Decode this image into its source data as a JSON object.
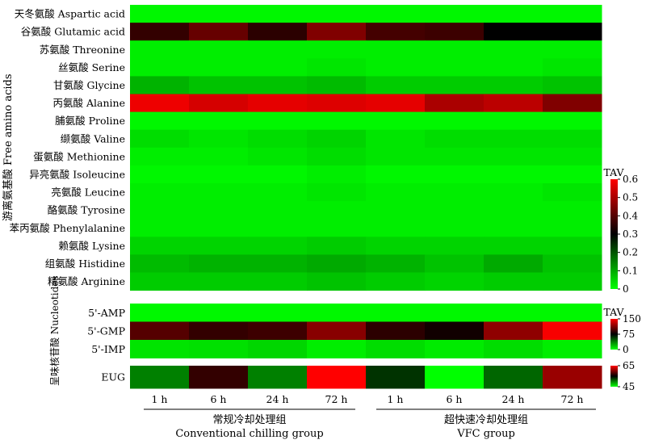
{
  "chart_data": [
    {
      "type": "heatmap",
      "panel": "free-amino-acids",
      "ylabel": "游离氨基酸 Free amino acids",
      "colorbar": {
        "title": "TAV",
        "range": [
          0,
          0.6
        ],
        "ticks": [
          "0",
          "0.1",
          "0.2",
          "0.3",
          "0.4",
          "0.5",
          "0.6"
        ]
      },
      "rows": [
        "天冬氨酸 Aspartic acid",
        "谷氨酸 Glutamic acid",
        "苏氨酸 Threonine",
        "丝氨酸 Serine",
        "甘氨酸 Glycine",
        "丙氨酸 Alanine",
        "脯氨酸 Proline",
        "缬氨酸 Valine",
        "蛋氨酸 Methionine",
        "异亮氨酸 Isoleucine",
        "亮氨酸 Leucine",
        "酪氨酸 Tyrosine",
        "苯丙氨酸 Phenylalanine",
        "赖氨酸 Lysine",
        "组氨酸 Histidine",
        "精氨酸 Arginine"
      ],
      "values": [
        [
          0.01,
          0.01,
          0.01,
          0.01,
          0.01,
          0.01,
          0.01,
          0.01
        ],
        [
          0.36,
          0.42,
          0.35,
          0.45,
          0.38,
          0.37,
          0.3,
          0.3
        ],
        [
          0.02,
          0.02,
          0.02,
          0.02,
          0.02,
          0.02,
          0.02,
          0.02
        ],
        [
          0.02,
          0.02,
          0.02,
          0.03,
          0.02,
          0.02,
          0.02,
          0.03
        ],
        [
          0.09,
          0.07,
          0.07,
          0.08,
          0.06,
          0.06,
          0.06,
          0.07
        ],
        [
          0.58,
          0.55,
          0.57,
          0.56,
          0.57,
          0.5,
          0.52,
          0.45
        ],
        [
          0.01,
          0.01,
          0.01,
          0.01,
          0.01,
          0.01,
          0.01,
          0.01
        ],
        [
          0.04,
          0.03,
          0.04,
          0.05,
          0.03,
          0.04,
          0.04,
          0.04
        ],
        [
          0.02,
          0.02,
          0.03,
          0.04,
          0.03,
          0.03,
          0.03,
          0.03
        ],
        [
          0.01,
          0.01,
          0.01,
          0.02,
          0.01,
          0.01,
          0.01,
          0.01
        ],
        [
          0.02,
          0.02,
          0.02,
          0.03,
          0.02,
          0.02,
          0.02,
          0.03
        ],
        [
          0.02,
          0.02,
          0.02,
          0.02,
          0.02,
          0.02,
          0.02,
          0.02
        ],
        [
          0.02,
          0.02,
          0.02,
          0.02,
          0.02,
          0.02,
          0.02,
          0.02
        ],
        [
          0.05,
          0.05,
          0.05,
          0.06,
          0.05,
          0.05,
          0.05,
          0.05
        ],
        [
          0.08,
          0.09,
          0.09,
          0.1,
          0.09,
          0.07,
          0.1,
          0.07
        ],
        [
          0.06,
          0.06,
          0.06,
          0.07,
          0.06,
          0.05,
          0.06,
          0.06
        ]
      ]
    },
    {
      "type": "heatmap",
      "panel": "nucleotides",
      "ylabel": "呈味核苷酸 Nucleotides",
      "colorbar": {
        "title": "TAV",
        "range": [
          0,
          150
        ],
        "ticks": [
          "0",
          "75",
          "150"
        ]
      },
      "rows": [
        "5'-AMP",
        "5'-GMP",
        "5'-IMP"
      ],
      "values": [
        [
          2,
          2,
          2,
          2,
          2,
          2,
          2,
          2
        ],
        [
          100,
          90,
          93,
          115,
          88,
          80,
          117,
          148
        ],
        [
          8,
          9,
          12,
          5,
          10,
          6,
          10,
          5
        ]
      ]
    },
    {
      "type": "heatmap",
      "panel": "eug",
      "colorbar": {
        "title": "",
        "range": [
          45,
          65
        ],
        "ticks": [
          "65",
          "45"
        ]
      },
      "rows": [
        "EUG"
      ],
      "values": [
        [
          50,
          57,
          50,
          65,
          53,
          45,
          51,
          61
        ]
      ]
    }
  ],
  "columns": [
    "1 h",
    "6 h",
    "24 h",
    "72 h",
    "1 h",
    "6 h",
    "24 h",
    "72 h"
  ],
  "groups": [
    {
      "cn": "常规冷却处理组",
      "en": "Conventional chilling group"
    },
    {
      "cn": "超快速冷却处理组",
      "en": "VFC group"
    }
  ]
}
